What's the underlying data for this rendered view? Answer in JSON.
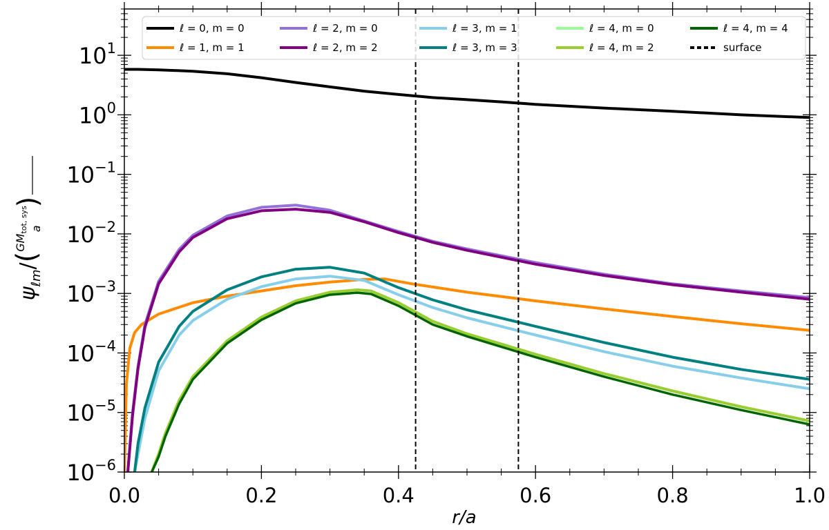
{
  "chart_data": {
    "type": "line",
    "title": "",
    "xlabel": "r/a",
    "ylabel": "ψℓm/(GM_tot,sys/a)",
    "ylabel_parts": {
      "psi": "ψ",
      "sub": "ℓm",
      "slash": "/",
      "num": "GM",
      "num_sub": "tot, sys",
      "den": "a"
    },
    "xlim": [
      0.0,
      1.0
    ],
    "ylim": [
      1e-06,
      60
    ],
    "yscale": "log",
    "grid": false,
    "legend_position": "top",
    "x_ticks": [
      "0.0",
      "0.2",
      "0.4",
      "0.6",
      "0.8",
      "1.0"
    ],
    "y_ticks": [
      {
        "base": "10",
        "exp": "−6",
        "value": 1e-06
      },
      {
        "base": "10",
        "exp": "−5",
        "value": 1e-05
      },
      {
        "base": "10",
        "exp": "−4",
        "value": 0.0001
      },
      {
        "base": "10",
        "exp": "−3",
        "value": 0.001
      },
      {
        "base": "10",
        "exp": "−2",
        "value": 0.01
      },
      {
        "base": "10",
        "exp": "−1",
        "value": 0.1
      },
      {
        "base": "10",
        "exp": "0",
        "value": 1
      },
      {
        "base": "10",
        "exp": "1",
        "value": 10
      }
    ],
    "series": [
      {
        "name": "ℓ = 0, m = 0",
        "color": "#000000",
        "x": [
          0.0,
          0.02,
          0.05,
          0.1,
          0.15,
          0.2,
          0.25,
          0.3,
          0.35,
          0.4,
          0.45,
          0.5,
          0.55,
          0.6,
          0.7,
          0.8,
          0.9,
          1.0
        ],
        "y": [
          5.8,
          5.8,
          5.7,
          5.4,
          4.9,
          4.2,
          3.5,
          2.95,
          2.5,
          2.2,
          1.95,
          1.8,
          1.65,
          1.5,
          1.3,
          1.15,
          1.0,
          0.9
        ]
      },
      {
        "name": "ℓ = 1, m = 1",
        "color": "#ff8c00",
        "x": [
          0.0,
          0.003,
          0.008,
          0.015,
          0.025,
          0.05,
          0.1,
          0.15,
          0.2,
          0.25,
          0.3,
          0.35,
          0.38,
          0.42,
          0.5,
          0.6,
          0.7,
          0.8,
          0.9,
          1.0
        ],
        "y": [
          1e-06,
          3e-05,
          0.00012,
          0.00022,
          0.0003,
          0.00045,
          0.0007,
          0.0009,
          0.0011,
          0.00135,
          0.00155,
          0.00172,
          0.00175,
          0.00145,
          0.00105,
          0.00075,
          0.00055,
          0.00041,
          0.00031,
          0.00024
        ]
      },
      {
        "name": "ℓ = 2, m = 0",
        "color": "#9370db",
        "x": [
          0.005,
          0.012,
          0.02,
          0.03,
          0.05,
          0.08,
          0.1,
          0.15,
          0.2,
          0.25,
          0.3,
          0.35,
          0.4,
          0.45,
          0.5,
          0.6,
          0.7,
          0.8,
          0.9,
          1.0
        ],
        "y": [
          1e-06,
          1e-05,
          6e-05,
          0.0003,
          0.0016,
          0.0055,
          0.0095,
          0.02,
          0.028,
          0.0305,
          0.025,
          0.0165,
          0.011,
          0.0075,
          0.0056,
          0.0033,
          0.0021,
          0.00145,
          0.0011,
          0.00085
        ]
      },
      {
        "name": "ℓ = 2, m = 2",
        "color": "#800080",
        "x": [
          0.005,
          0.012,
          0.02,
          0.03,
          0.05,
          0.08,
          0.1,
          0.15,
          0.2,
          0.25,
          0.3,
          0.35,
          0.4,
          0.45,
          0.5,
          0.6,
          0.7,
          0.8,
          0.9,
          1.0
        ],
        "y": [
          1e-06,
          9e-06,
          5.5e-05,
          0.00027,
          0.00145,
          0.005,
          0.0087,
          0.018,
          0.0245,
          0.026,
          0.023,
          0.016,
          0.0105,
          0.0072,
          0.0053,
          0.0031,
          0.002,
          0.0014,
          0.00105,
          0.0008
        ]
      },
      {
        "name": "ℓ = 3, m = 1",
        "color": "#87ceeb",
        "x": [
          0.015,
          0.02,
          0.03,
          0.05,
          0.08,
          0.1,
          0.15,
          0.2,
          0.25,
          0.3,
          0.35,
          0.4,
          0.45,
          0.5,
          0.6,
          0.7,
          0.8,
          0.9,
          1.0
        ],
        "y": [
          1e-06,
          2e-06,
          8e-06,
          5e-05,
          0.0002,
          0.00035,
          0.0008,
          0.0013,
          0.00175,
          0.00195,
          0.00165,
          0.00095,
          0.00058,
          0.00039,
          0.0002,
          0.000105,
          6e-05,
          3.8e-05,
          2.5e-05
        ]
      },
      {
        "name": "ℓ = 3, m = 3",
        "color": "#008080",
        "x": [
          0.015,
          0.02,
          0.03,
          0.05,
          0.08,
          0.1,
          0.15,
          0.2,
          0.25,
          0.3,
          0.35,
          0.4,
          0.45,
          0.5,
          0.6,
          0.7,
          0.8,
          0.9,
          1.0
        ],
        "y": [
          1e-06,
          3e-06,
          1.2e-05,
          7e-05,
          0.00028,
          0.0005,
          0.00115,
          0.0019,
          0.00255,
          0.00275,
          0.0022,
          0.00125,
          0.00078,
          0.00053,
          0.00028,
          0.00015,
          8.5e-05,
          5.3e-05,
          3.6e-05
        ]
      },
      {
        "name": "ℓ = 4, m = 0",
        "color": "#98fb98",
        "x": [
          0.04,
          0.05,
          0.06,
          0.08,
          0.1,
          0.15,
          0.2,
          0.25,
          0.3,
          0.34,
          0.36,
          0.4,
          0.45,
          0.5,
          0.6,
          0.7,
          0.8,
          0.9,
          1.0
        ],
        "y": [
          1e-06,
          2e-06,
          4.5e-06,
          1.6e-05,
          4e-05,
          0.00016,
          0.0004,
          0.00075,
          0.00105,
          0.00115,
          0.0011,
          0.0007,
          0.00034,
          0.00021,
          9.5e-05,
          4.5e-05,
          2.3e-05,
          1.25e-05,
          7.2e-06
        ]
      },
      {
        "name": "ℓ = 4, m = 2",
        "color": "#9acd32",
        "x": [
          0.04,
          0.05,
          0.06,
          0.08,
          0.1,
          0.15,
          0.2,
          0.25,
          0.3,
          0.34,
          0.36,
          0.4,
          0.45,
          0.5,
          0.6,
          0.7,
          0.8,
          0.9,
          1.0
        ],
        "y": [
          1e-06,
          2e-06,
          4.5e-06,
          1.6e-05,
          4e-05,
          0.00016,
          0.0004,
          0.00075,
          0.00105,
          0.00115,
          0.0011,
          0.0007,
          0.00034,
          0.00021,
          9.5e-05,
          4.5e-05,
          2.3e-05,
          1.25e-05,
          7.2e-06
        ]
      },
      {
        "name": "ℓ = 4, m = 4",
        "color": "#006400",
        "x": [
          0.04,
          0.05,
          0.06,
          0.08,
          0.1,
          0.15,
          0.2,
          0.25,
          0.3,
          0.34,
          0.36,
          0.4,
          0.45,
          0.5,
          0.6,
          0.7,
          0.8,
          0.9,
          1.0
        ],
        "y": [
          1e-06,
          1.8e-06,
          4e-06,
          1.4e-05,
          3.6e-05,
          0.000145,
          0.00036,
          0.00068,
          0.00095,
          0.00103,
          0.00098,
          0.00062,
          0.0003,
          0.00019,
          8.5e-05,
          4e-05,
          2e-05,
          1.1e-05,
          6.3e-06
        ]
      }
    ],
    "reference_lines": [
      {
        "x": 0.425,
        "style": "dashed",
        "color": "#000000"
      },
      {
        "x": 0.575,
        "style": "dashed",
        "color": "#000000"
      }
    ],
    "legend": [
      {
        "label": "ℓ = 0, m = 0",
        "color": "#000000",
        "dashed": false
      },
      {
        "label": "ℓ = 2, m = 0",
        "color": "#9370db",
        "dashed": false
      },
      {
        "label": "ℓ = 3, m = 1",
        "color": "#87ceeb",
        "dashed": false
      },
      {
        "label": "ℓ = 4, m = 0",
        "color": "#98fb98",
        "dashed": false
      },
      {
        "label": "ℓ = 4, m = 4",
        "color": "#006400",
        "dashed": false
      },
      {
        "label": "ℓ = 1, m = 1",
        "color": "#ff8c00",
        "dashed": false
      },
      {
        "label": "ℓ = 2, m = 2",
        "color": "#800080",
        "dashed": false
      },
      {
        "label": "ℓ = 3, m = 3",
        "color": "#008080",
        "dashed": false
      },
      {
        "label": "ℓ = 4, m = 2",
        "color": "#9acd32",
        "dashed": false
      },
      {
        "label": "surface",
        "color": "#000000",
        "dashed": true
      }
    ]
  }
}
